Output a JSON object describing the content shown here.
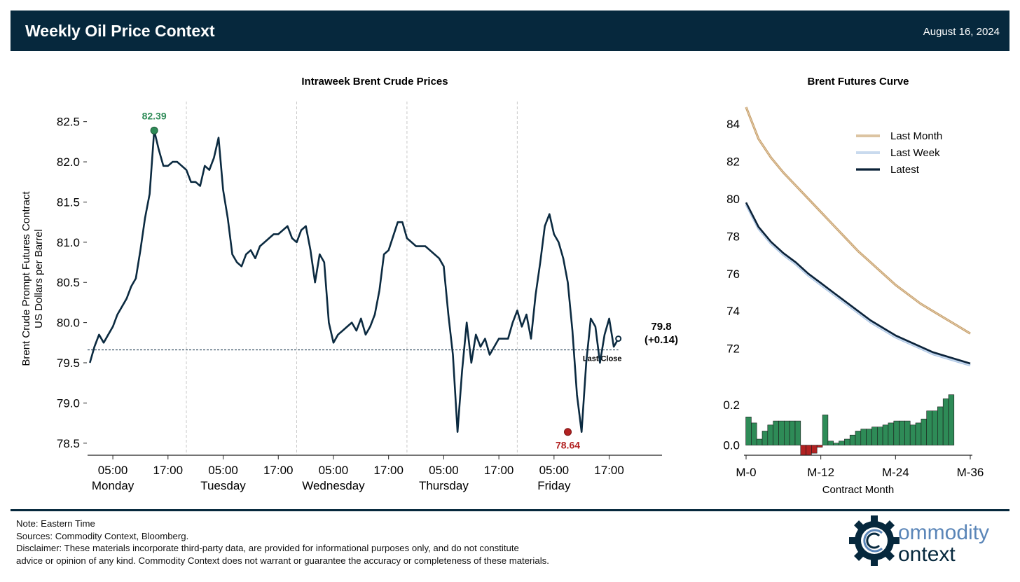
{
  "header": {
    "title": "Weekly Oil Price Context",
    "date": "August 16, 2024"
  },
  "colors": {
    "header_bg": "#06283d",
    "series_line": "#0b2a40",
    "high_marker": "#2e8b57",
    "low_marker": "#b22222",
    "last_month": "#c8a06a",
    "last_week": "#a9c4e4",
    "latest": "#0b2238",
    "positive_bar": "#2e8b57",
    "negative_bar": "#b22222"
  },
  "chart_data": [
    {
      "type": "line",
      "title": "Intraweek Brent Crude Prices",
      "ylabel": "Brent Crude Prompt Futures Contract\nUS Dollars per Barrel",
      "ylabel_lines": [
        "Brent Crude Prompt Futures Contract",
        "US Dollars per Barrel"
      ],
      "ylim": [
        78.35,
        82.75
      ],
      "yticks": [
        78.5,
        79.0,
        79.5,
        80.0,
        80.5,
        81.0,
        81.5,
        82.0,
        82.5
      ],
      "ytick_labels": [
        "78.5",
        "79.0",
        "79.5",
        "80.0",
        "80.5",
        "81.0",
        "81.5",
        "82.0",
        "82.5"
      ],
      "xlim_hours": [
        -0.5,
        124.5
      ],
      "xticks": [
        {
          "h": 5,
          "label": "05:00",
          "day": "Monday"
        },
        {
          "h": 17,
          "label": "17:00",
          "day": ""
        },
        {
          "h": 29,
          "label": "05:00",
          "day": "Tuesday"
        },
        {
          "h": 41,
          "label": "17:00",
          "day": ""
        },
        {
          "h": 53,
          "label": "05:00",
          "day": "Wednesday"
        },
        {
          "h": 65,
          "label": "17:00",
          "day": ""
        },
        {
          "h": 77,
          "label": "05:00",
          "day": "Thursday"
        },
        {
          "h": 89,
          "label": "17:00",
          "day": ""
        },
        {
          "h": 101,
          "label": "05:00",
          "day": "Friday"
        },
        {
          "h": 113,
          "label": "17:00",
          "day": ""
        }
      ],
      "day_separators_hours": [
        21,
        45,
        69,
        93
      ],
      "series": [
        {
          "x": [
            0,
            1,
            2,
            3,
            4,
            5,
            6,
            7,
            8,
            9,
            10,
            11,
            12,
            13,
            14,
            15,
            16,
            17,
            18,
            19,
            21,
            22,
            23,
            24,
            25,
            26,
            27,
            28,
            29,
            30,
            31,
            32,
            33,
            34,
            35,
            36,
            37,
            38,
            39,
            40,
            41,
            43,
            44,
            45,
            46,
            47,
            48,
            49,
            50,
            51,
            52,
            53,
            54,
            55,
            56,
            57,
            58,
            59,
            60,
            61,
            62,
            63,
            64,
            65,
            67,
            68,
            69,
            70,
            71,
            72,
            73,
            74,
            75,
            76,
            77,
            78,
            79,
            80,
            81,
            82,
            83,
            84,
            85,
            86,
            87,
            89,
            91,
            92,
            93,
            94,
            95,
            96,
            97,
            98,
            99,
            100,
            101,
            102,
            103,
            104,
            105,
            106,
            107,
            108,
            109,
            110,
            111,
            112,
            113,
            114,
            115
          ],
          "y": [
            79.5,
            79.7,
            79.85,
            79.75,
            79.85,
            79.95,
            80.1,
            80.2,
            80.3,
            80.45,
            80.55,
            80.9,
            81.3,
            81.6,
            82.39,
            82.15,
            81.95,
            81.95,
            82.0,
            82.0,
            81.9,
            81.75,
            81.75,
            81.7,
            81.95,
            81.9,
            82.05,
            82.3,
            81.65,
            81.3,
            80.85,
            80.75,
            80.7,
            80.85,
            80.9,
            80.8,
            80.95,
            81.0,
            81.05,
            81.1,
            81.1,
            81.2,
            81.05,
            81.0,
            81.15,
            81.2,
            80.9,
            80.5,
            80.85,
            80.75,
            80.0,
            79.75,
            79.85,
            79.9,
            79.95,
            80.0,
            79.9,
            80.05,
            79.85,
            79.95,
            80.1,
            80.4,
            80.85,
            80.9,
            81.25,
            81.25,
            81.05,
            81.0,
            80.95,
            80.95,
            80.95,
            80.9,
            80.85,
            80.8,
            80.7,
            80.1,
            79.6,
            78.64,
            79.4,
            80.0,
            79.5,
            79.85,
            79.7,
            79.8,
            79.6,
            79.8,
            79.8,
            80.0,
            80.15,
            79.95,
            80.1,
            79.8,
            80.35,
            80.75,
            81.2,
            81.35,
            81.1,
            81.0,
            80.8,
            80.5,
            79.9,
            79.1,
            78.64,
            79.5,
            80.05,
            79.95,
            79.5,
            79.85,
            80.05,
            79.7,
            79.8
          ]
        }
      ],
      "reference_line": {
        "y": 79.66,
        "label": "Last Close"
      },
      "high": {
        "x": 14,
        "y": 82.39,
        "label": "82.39"
      },
      "low": {
        "x": 104,
        "y": 78.64,
        "label": "78.64"
      },
      "last": {
        "x": 115,
        "y": 79.8,
        "label_value": "79.8",
        "label_change": "(+0.14)"
      }
    },
    {
      "type": "line",
      "title": "Brent Futures Curve",
      "xlabel": "Contract Month",
      "xticks": [
        0,
        12,
        24,
        36
      ],
      "xtick_labels": [
        "M-0",
        "M-12",
        "M-24",
        "M-36"
      ],
      "ylim_top": [
        70.6,
        85.2
      ],
      "yticks_top": [
        72,
        74,
        76,
        78,
        80,
        82,
        84
      ],
      "ytick_labels_top": [
        "72",
        "74",
        "76",
        "78",
        "80",
        "82",
        "84"
      ],
      "legend": [
        "Last Month",
        "Last Week",
        "Latest"
      ],
      "legend_position": "upper-right",
      "series": [
        {
          "name": "Last Month",
          "x": [
            0,
            2,
            4,
            6,
            8,
            10,
            12,
            14,
            16,
            18,
            20,
            22,
            24,
            26,
            28,
            30,
            32,
            34,
            36
          ],
          "values": [
            84.9,
            83.2,
            82.2,
            81.4,
            80.7,
            80.0,
            79.3,
            78.6,
            77.9,
            77.2,
            76.6,
            76.0,
            75.4,
            74.9,
            74.4,
            74.0,
            73.6,
            73.2,
            72.8
          ]
        },
        {
          "name": "Last Week",
          "x": [
            0,
            2,
            4,
            6,
            8,
            10,
            12,
            14,
            16,
            18,
            20,
            22,
            24,
            26,
            28,
            30,
            32,
            34,
            36
          ],
          "values": [
            79.7,
            78.4,
            77.6,
            77.0,
            76.5,
            75.9,
            75.4,
            74.9,
            74.4,
            73.9,
            73.4,
            73.0,
            72.6,
            72.3,
            72.0,
            71.7,
            71.5,
            71.3,
            71.1
          ]
        },
        {
          "name": "Latest",
          "x": [
            0,
            2,
            4,
            6,
            8,
            10,
            12,
            14,
            16,
            18,
            20,
            22,
            24,
            26,
            28,
            30,
            32,
            34,
            36
          ],
          "values": [
            79.8,
            78.5,
            77.7,
            77.1,
            76.6,
            76.0,
            75.5,
            75.0,
            74.5,
            74.0,
            73.5,
            73.1,
            72.7,
            72.4,
            72.1,
            71.8,
            71.6,
            71.4,
            71.2
          ]
        }
      ],
      "bars_ylim": [
        -0.05,
        0.28
      ],
      "bars_yticks": [
        0.0,
        0.2
      ],
      "bars_ytick_labels": [
        "0.0",
        "0.2"
      ],
      "bars_values": [
        0.14,
        0.11,
        0.03,
        0.07,
        0.1,
        0.12,
        0.12,
        0.12,
        0.12,
        0.12,
        -0.05,
        -0.05,
        -0.04,
        -0.01,
        0.15,
        0.02,
        0.01,
        0.02,
        0.03,
        0.05,
        0.07,
        0.08,
        0.08,
        0.09,
        0.09,
        0.1,
        0.11,
        0.12,
        0.12,
        0.12,
        0.1,
        0.11,
        0.13,
        0.17,
        0.17,
        0.19,
        0.23,
        0.25
      ]
    }
  ],
  "footer": {
    "note": "Note: Eastern Time",
    "sources": "Sources: Commodity Context, Bloomberg.",
    "disclaimer_1": "Disclaimer: These materials incorporate third-party data, are provided for informational purposes only, and do not constitute",
    "disclaimer_2": "advice or opinion of any kind. Commodity Context does not warrant or guarantee the accuracy or completeness of these materials."
  },
  "logo": {
    "line1": "ommodity",
    "line2": "ontext"
  }
}
